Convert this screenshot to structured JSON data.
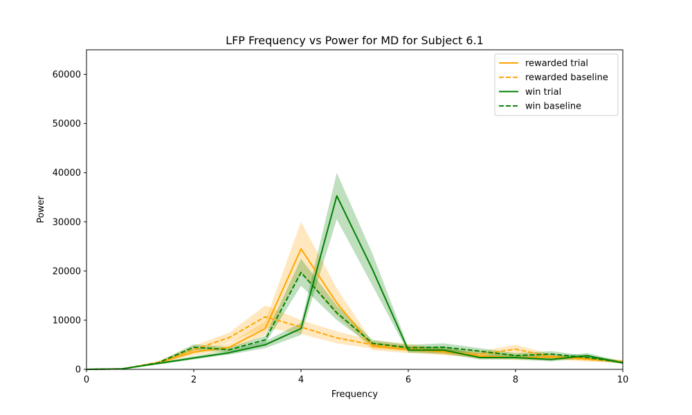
{
  "chart_data": {
    "type": "line",
    "title": "LFP Frequency vs Power for MD for Subject 6.1",
    "xlabel": "Frequency",
    "ylabel": "Power",
    "xlim": [
      0,
      10
    ],
    "ylim": [
      0,
      65000
    ],
    "xticks": [
      0,
      2,
      4,
      6,
      8,
      10
    ],
    "yticks": [
      0,
      10000,
      20000,
      30000,
      40000,
      50000,
      60000
    ],
    "x": [
      0,
      0.667,
      1.333,
      2.0,
      2.667,
      3.333,
      4.0,
      4.667,
      5.333,
      6.0,
      6.667,
      7.333,
      8.0,
      8.667,
      9.333,
      10.0
    ],
    "legend_position": "upper-right",
    "grid": false,
    "series": [
      {
        "name": "rewarded trial",
        "color": "#ffa500",
        "dash": "solid",
        "values": [
          0,
          100,
          1300,
          3500,
          4500,
          8300,
          24500,
          13500,
          4700,
          4000,
          3600,
          2700,
          2400,
          2500,
          2200,
          1500
        ],
        "lower": [
          0,
          80,
          1100,
          2900,
          3800,
          7000,
          19500,
          11000,
          3900,
          3300,
          3000,
          2200,
          1900,
          2000,
          1800,
          1200
        ],
        "upper": [
          0,
          120,
          1500,
          4100,
          5300,
          9800,
          30000,
          16500,
          5500,
          4800,
          4300,
          3300,
          3100,
          3000,
          2600,
          1800
        ]
      },
      {
        "name": "rewarded baseline",
        "color": "#ffa500",
        "dash": "dashed",
        "values": [
          0,
          100,
          1400,
          4000,
          6500,
          10700,
          8600,
          6400,
          5000,
          4400,
          3500,
          3100,
          4100,
          2600,
          2000,
          1600
        ],
        "lower": [
          0,
          80,
          1200,
          3300,
          5500,
          8500,
          7200,
          5300,
          4200,
          3700,
          2900,
          2500,
          3200,
          2100,
          1600,
          1300
        ],
        "upper": [
          0,
          120,
          1700,
          4800,
          7500,
          13000,
          10000,
          7700,
          5900,
          5200,
          4200,
          3700,
          5000,
          3100,
          2400,
          1900
        ]
      },
      {
        "name": "win trial",
        "color": "#008000",
        "dash": "solid",
        "values": [
          0,
          100,
          1200,
          2300,
          3400,
          5000,
          8300,
          35300,
          20300,
          3900,
          3900,
          2400,
          2400,
          2000,
          2800,
          1300
        ],
        "lower": [
          0,
          80,
          1000,
          2000,
          3000,
          4300,
          7000,
          30500,
          17000,
          3400,
          3200,
          2000,
          2000,
          1600,
          2300,
          1100
        ],
        "upper": [
          0,
          120,
          1400,
          2700,
          3900,
          5700,
          9500,
          40000,
          23500,
          4500,
          4700,
          2900,
          2900,
          2500,
          3300,
          1600
        ]
      },
      {
        "name": "win baseline",
        "color": "#008000",
        "dash": "dashed",
        "values": [
          0,
          100,
          1300,
          4500,
          4000,
          6000,
          19700,
          11500,
          5300,
          4400,
          4500,
          3700,
          2800,
          3100,
          2400,
          1400
        ],
        "lower": [
          0,
          80,
          1100,
          3900,
          3500,
          5200,
          17000,
          10000,
          4700,
          3900,
          3800,
          3100,
          2300,
          2600,
          2000,
          1200
        ],
        "upper": [
          0,
          120,
          1500,
          5100,
          4500,
          6800,
          22500,
          13000,
          6000,
          5000,
          5300,
          4300,
          3300,
          3700,
          2800,
          1700
        ]
      }
    ]
  }
}
